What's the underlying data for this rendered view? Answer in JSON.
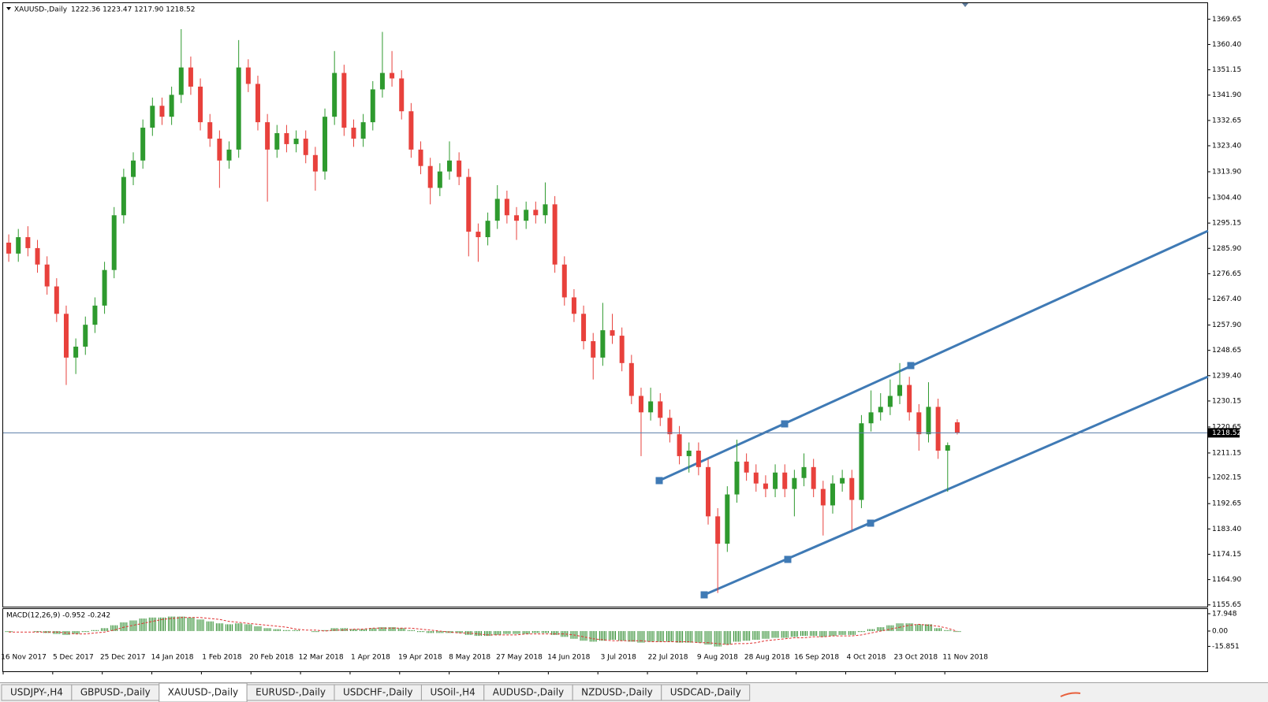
{
  "chart_data": [
    {
      "type": "candlestick",
      "title": "XAUUSD-,Daily",
      "ohlc_label": "1222.36 1223.47 1217.90 1218.52",
      "up_color": "#2e9a2e",
      "down_color": "#e8413c",
      "last_price": 1218.52,
      "ylim": [
        1155,
        1375.5
      ],
      "yticks": [
        1369.65,
        {
          "value": 1360.4,
          "label": "1360.40"
        },
        1351.15,
        {
          "value": 1341.9,
          "label": "1341.90"
        },
        1332.65,
        {
          "value": 1323.4,
          "label": "1323.40"
        },
        {
          "value": 1313.9,
          "label": "1313.90"
        },
        {
          "value": 1304.4,
          "label": "1304.40"
        },
        1295.15,
        {
          "value": 1285.9,
          "label": "1285.90"
        },
        1276.65,
        {
          "value": 1267.4,
          "label": "1267.40"
        },
        {
          "value": 1257.9,
          "label": "1257.90"
        },
        1248.65,
        {
          "value": 1239.4,
          "label": "1239.40"
        },
        1230.15,
        1220.65,
        1211.15,
        1202.15,
        1192.65,
        {
          "value": 1183.4,
          "label": "1183.40"
        },
        1174.15,
        {
          "value": 1164.9,
          "label": "1164.90"
        },
        1155.65
      ],
      "date_labels": [
        "16 Nov 2017",
        "5 Dec 2017",
        "25 Dec 2017",
        "14 Jan 2018",
        "1 Feb 2018",
        "20 Feb 2018",
        "12 Mar 2018",
        "1 Apr 2018",
        "19 Apr 2018",
        "8 May 2018",
        "27 May 2018",
        "14 Jun 2018",
        "3 Jul 2018",
        "22 Jul 2018",
        "9 Aug 2018",
        "28 Aug 2018",
        "16 Sep 2018",
        "4 Oct 2018",
        "23 Oct 2018",
        "11 Nov 2018"
      ],
      "candles": [
        [
          1288,
          1291,
          1281,
          1284
        ],
        [
          1284,
          1293,
          1281,
          1290
        ],
        [
          1290,
          1294,
          1283,
          1286
        ],
        [
          1286,
          1289,
          1277,
          1280
        ],
        [
          1280,
          1283,
          1269,
          1272
        ],
        [
          1272,
          1275,
          1259,
          1262
        ],
        [
          1262,
          1265,
          1236,
          1246
        ],
        [
          1246,
          1253,
          1240,
          1250
        ],
        [
          1250,
          1261,
          1247,
          1258
        ],
        [
          1258,
          1268,
          1255,
          1265
        ],
        [
          1265,
          1281,
          1262,
          1278
        ],
        [
          1278,
          1301,
          1275,
          1298
        ],
        [
          1298,
          1315,
          1295,
          1312
        ],
        [
          1312,
          1321,
          1309,
          1318
        ],
        [
          1318,
          1333,
          1315,
          1330
        ],
        [
          1330,
          1341,
          1327,
          1338
        ],
        [
          1338,
          1341,
          1331,
          1334
        ],
        [
          1334,
          1345,
          1331,
          1342
        ],
        [
          1342,
          1366,
          1339,
          1352
        ],
        [
          1352,
          1356,
          1342,
          1345
        ],
        [
          1345,
          1348,
          1329,
          1332
        ],
        [
          1332,
          1335,
          1323,
          1326
        ],
        [
          1326,
          1329,
          1308,
          1318
        ],
        [
          1318,
          1325,
          1315,
          1322
        ],
        [
          1322,
          1362,
          1319,
          1352
        ],
        [
          1352,
          1355,
          1343,
          1346
        ],
        [
          1346,
          1349,
          1329,
          1332
        ],
        [
          1332,
          1335,
          1303,
          1322
        ],
        [
          1322,
          1331,
          1319,
          1328
        ],
        [
          1328,
          1331,
          1321,
          1324
        ],
        [
          1324,
          1329,
          1321,
          1326
        ],
        [
          1326,
          1329,
          1317,
          1320
        ],
        [
          1320,
          1323,
          1307,
          1314
        ],
        [
          1314,
          1337,
          1311,
          1334
        ],
        [
          1334,
          1358,
          1331,
          1350
        ],
        [
          1350,
          1353,
          1327,
          1330
        ],
        [
          1330,
          1333,
          1323,
          1326
        ],
        [
          1326,
          1335,
          1323,
          1332
        ],
        [
          1332,
          1347,
          1329,
          1344
        ],
        [
          1344,
          1365,
          1341,
          1350
        ],
        [
          1350,
          1358,
          1345,
          1348
        ],
        [
          1348,
          1351,
          1333,
          1336
        ],
        [
          1336,
          1339,
          1319,
          1322
        ],
        [
          1322,
          1325,
          1313,
          1316
        ],
        [
          1316,
          1319,
          1302,
          1308
        ],
        [
          1308,
          1317,
          1305,
          1314
        ],
        [
          1314,
          1325,
          1311,
          1318
        ],
        [
          1318,
          1321,
          1309,
          1312
        ],
        [
          1312,
          1315,
          1283,
          1292
        ],
        [
          1292,
          1295,
          1281,
          1290
        ],
        [
          1290,
          1299,
          1287,
          1296
        ],
        [
          1296,
          1309,
          1293,
          1304
        ],
        [
          1304,
          1307,
          1295,
          1298
        ],
        [
          1298,
          1301,
          1289,
          1296
        ],
        [
          1296,
          1303,
          1293,
          1300
        ],
        [
          1300,
          1303,
          1295,
          1298
        ],
        [
          1298,
          1310,
          1295,
          1302
        ],
        [
          1302,
          1305,
          1277,
          1280
        ],
        [
          1280,
          1283,
          1265,
          1268
        ],
        [
          1268,
          1271,
          1259,
          1262
        ],
        [
          1262,
          1265,
          1249,
          1252
        ],
        [
          1252,
          1255,
          1238,
          1246
        ],
        [
          1246,
          1266,
          1243,
          1256
        ],
        [
          1256,
          1262,
          1251,
          1254
        ],
        [
          1254,
          1257,
          1241,
          1244
        ],
        [
          1244,
          1247,
          1229,
          1232
        ],
        [
          1232,
          1235,
          1210,
          1226
        ],
        [
          1226,
          1235,
          1223,
          1230
        ],
        [
          1230,
          1233,
          1221,
          1224
        ],
        [
          1224,
          1227,
          1215,
          1218
        ],
        [
          1218,
          1221,
          1207,
          1210
        ],
        [
          1210,
          1215,
          1204,
          1212
        ],
        [
          1212,
          1215,
          1203,
          1206
        ],
        [
          1206,
          1209,
          1185,
          1188
        ],
        [
          1188,
          1191,
          1160,
          1178
        ],
        [
          1178,
          1199,
          1175,
          1196
        ],
        [
          1196,
          1216,
          1193,
          1208
        ],
        [
          1208,
          1211,
          1201,
          1204
        ],
        [
          1204,
          1207,
          1197,
          1200
        ],
        [
          1200,
          1203,
          1195,
          1198
        ],
        [
          1198,
          1207,
          1195,
          1204
        ],
        [
          1204,
          1207,
          1195,
          1198
        ],
        [
          1198,
          1205,
          1188,
          1202
        ],
        [
          1202,
          1211,
          1199,
          1206
        ],
        [
          1206,
          1209,
          1195,
          1198
        ],
        [
          1198,
          1201,
          1181,
          1192
        ],
        [
          1192,
          1203,
          1189,
          1200
        ],
        [
          1200,
          1205,
          1197,
          1202
        ],
        [
          1202,
          1205,
          1183,
          1194
        ],
        [
          1194,
          1225,
          1191,
          1222
        ],
        [
          1222,
          1234,
          1219,
          1226
        ],
        [
          1226,
          1233,
          1223,
          1228
        ],
        [
          1228,
          1238,
          1225,
          1232
        ],
        [
          1232,
          1244,
          1229,
          1236
        ],
        [
          1236,
          1239,
          1223,
          1226
        ],
        [
          1226,
          1229,
          1212,
          1218
        ],
        [
          1218,
          1237,
          1215,
          1228
        ],
        [
          1228,
          1231,
          1209,
          1212
        ],
        [
          1212,
          1215,
          1197,
          1214
        ],
        [
          1222.36,
          1223.47,
          1217.9,
          1218.52
        ]
      ]
    },
    {
      "type": "macd",
      "title": "MACD(12,26,9) -0.952 -0.242",
      "ylim": [
        -19.6,
        22.8
      ],
      "yticks": [
        17.948,
        {
          "value": 0,
          "label": "0.00"
        },
        -15.851
      ],
      "series": [
        {
          "name": "MACD",
          "color": "#2a8a2a",
          "values": [
            -1,
            0,
            0,
            -1,
            -2,
            -3,
            -4,
            -3,
            -1,
            1,
            3,
            6,
            9,
            11,
            13,
            14,
            14,
            15,
            15,
            14,
            12,
            10,
            8,
            7,
            8,
            7,
            5,
            3,
            2,
            1,
            1,
            0,
            -1,
            1,
            3,
            3,
            2,
            2,
            3,
            4,
            4,
            3,
            1,
            -1,
            -2,
            -2,
            -2,
            -2,
            -4,
            -5,
            -5,
            -4,
            -3,
            -3,
            -3,
            -2,
            -2,
            -4,
            -6,
            -8,
            -10,
            -11,
            -10,
            -9,
            -10,
            -11,
            -12,
            -11,
            -11,
            -11,
            -12,
            -12,
            -12,
            -14,
            -16,
            -14,
            -11,
            -10,
            -9,
            -8,
            -7,
            -7,
            -6,
            -5,
            -5,
            -6,
            -5,
            -4,
            -4,
            -1,
            2,
            4,
            6,
            8,
            8,
            7,
            7,
            3,
            1,
            -0.952
          ]
        },
        {
          "name": "Signal",
          "color": "#e03030",
          "values": [
            -1,
            -1,
            -1,
            -1,
            -1,
            -1,
            -2,
            -3,
            -3,
            -2,
            -1,
            1,
            4,
            6,
            8,
            10,
            12,
            13,
            14,
            14,
            14,
            13,
            12,
            10,
            9,
            8,
            7,
            6,
            5,
            4,
            2,
            1,
            1,
            0,
            1,
            1,
            2,
            2,
            3,
            3,
            3,
            3,
            3,
            2,
            1,
            0,
            -1,
            -2,
            -2,
            -3,
            -4,
            -4,
            -4,
            -4,
            -3,
            -3,
            -3,
            -3,
            -3,
            -4,
            -6,
            -8,
            -9,
            -10,
            -10,
            -10,
            -10,
            -11,
            -11,
            -11,
            -11,
            -11,
            -12,
            -12,
            -13,
            -14,
            -13,
            -13,
            -12,
            -10,
            -9,
            -8,
            -7,
            -7,
            -6,
            -6,
            -5,
            -5,
            -5,
            -4,
            -2,
            0,
            2,
            4,
            6,
            7,
            6,
            5,
            3,
            -0.242
          ]
        }
      ]
    }
  ],
  "tabs": [
    "USDJPY-,H4",
    "GBPUSD-,Daily",
    "XAUUSD-,Daily",
    "EURUSD-,Daily",
    "USDCHF-,Daily",
    "USOil-,H4",
    "AUDUSD-,Daily",
    "NZDUSD-,Daily",
    "USDCAD-,Daily"
  ],
  "active_tab": 2
}
